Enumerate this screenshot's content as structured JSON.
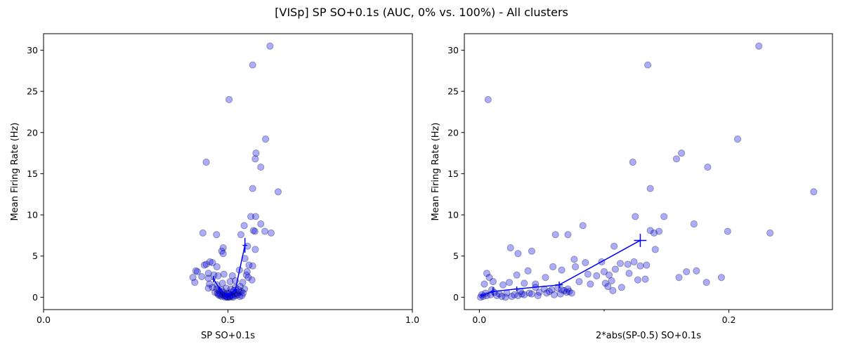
{
  "suptitle": "[VISp] SP SO+0.1s (AUC, 0% vs. 100%) - All clusters",
  "chart_data": [
    {
      "type": "scatter",
      "xlabel": "SP SO+0.1s",
      "ylabel": "Mean Firing Rate (Hz)",
      "xlim": [
        0.0,
        1.0
      ],
      "ylim": [
        -1.5,
        32
      ],
      "xticks": [
        0.0,
        0.5,
        1.0
      ],
      "xtick_labels": [
        "0.0",
        "0.5",
        "1.0"
      ],
      "yticks": [
        0,
        5,
        10,
        15,
        20,
        25,
        30
      ],
      "ytick_labels": [
        "0",
        "5",
        "10",
        "15",
        "20",
        "25",
        "30"
      ],
      "point_color": "#0000ff",
      "line_color": "#0000ff",
      "points": [
        [
          0.614,
          30.5
        ],
        [
          0.567,
          28.2
        ],
        [
          0.503,
          24.0
        ],
        [
          0.602,
          19.2
        ],
        [
          0.576,
          17.5
        ],
        [
          0.574,
          16.8
        ],
        [
          0.589,
          15.8
        ],
        [
          0.441,
          16.4
        ],
        [
          0.636,
          12.8
        ],
        [
          0.567,
          13.2
        ],
        [
          0.562,
          9.8
        ],
        [
          0.575,
          9.8
        ],
        [
          0.589,
          8.9
        ],
        [
          0.544,
          8.7
        ],
        [
          0.569,
          8.1
        ],
        [
          0.573,
          8.0
        ],
        [
          0.6,
          8.0
        ],
        [
          0.617,
          7.8
        ],
        [
          0.432,
          7.8
        ],
        [
          0.469,
          7.6
        ],
        [
          0.535,
          7.6
        ],
        [
          0.487,
          6.0
        ],
        [
          0.553,
          6.2
        ],
        [
          0.483,
          5.6
        ],
        [
          0.487,
          5.3
        ],
        [
          0.574,
          5.8
        ],
        [
          0.546,
          4.7
        ],
        [
          0.451,
          4.3
        ],
        [
          0.441,
          4.0
        ],
        [
          0.436,
          3.9
        ],
        [
          0.458,
          4.2
        ],
        [
          0.557,
          3.9
        ],
        [
          0.567,
          3.8
        ],
        [
          0.47,
          3.7
        ],
        [
          0.413,
          3.2
        ],
        [
          0.417,
          3.1
        ],
        [
          0.531,
          3.3
        ],
        [
          0.447,
          2.9
        ],
        [
          0.552,
          3.1
        ],
        [
          0.55,
          2.7
        ],
        [
          0.462,
          2.7
        ],
        [
          0.473,
          2.6
        ],
        [
          0.405,
          2.4
        ],
        [
          0.429,
          2.5
        ],
        [
          0.447,
          2.3
        ],
        [
          0.489,
          2.8
        ],
        [
          0.512,
          2.6
        ],
        [
          0.555,
          2.4
        ],
        [
          0.565,
          2.1
        ],
        [
          0.41,
          1.8
        ],
        [
          0.45,
          1.6
        ],
        [
          0.47,
          1.5
        ],
        [
          0.485,
          1.7
        ],
        [
          0.506,
          1.9
        ],
        [
          0.52,
          2.0
        ],
        [
          0.54,
          1.8
        ],
        [
          0.447,
          1.1
        ],
        [
          0.458,
          1.2
        ],
        [
          0.47,
          1.0
        ],
        [
          0.482,
          0.9
        ],
        [
          0.495,
          1.1
        ],
        [
          0.508,
          1.0
        ],
        [
          0.52,
          1.2
        ],
        [
          0.533,
          1.3
        ],
        [
          0.545,
          1.0
        ],
        [
          0.465,
          0.6
        ],
        [
          0.472,
          0.5
        ],
        [
          0.478,
          0.4
        ],
        [
          0.485,
          0.3
        ],
        [
          0.49,
          0.2
        ],
        [
          0.495,
          0.1
        ],
        [
          0.5,
          0.0
        ],
        [
          0.503,
          0.1
        ],
        [
          0.507,
          0.2
        ],
        [
          0.512,
          0.3
        ],
        [
          0.518,
          0.4
        ],
        [
          0.524,
          0.5
        ],
        [
          0.53,
          0.6
        ],
        [
          0.536,
          0.7
        ],
        [
          0.541,
          0.5
        ],
        [
          0.488,
          0.6
        ],
        [
          0.498,
          0.5
        ],
        [
          0.508,
          0.6
        ],
        [
          0.516,
          0.8
        ],
        [
          0.528,
          0.9
        ],
        [
          0.476,
          0.8
        ],
        [
          0.493,
          0.3
        ],
        [
          0.502,
          0.4
        ],
        [
          0.511,
          0.1
        ],
        [
          0.521,
          0.2
        ],
        [
          0.526,
          0.3
        ],
        [
          0.498,
          0.0
        ],
        [
          0.505,
          0.0
        ],
        [
          0.514,
          0.0
        ],
        [
          0.492,
          0.0
        ],
        [
          0.483,
          0.1
        ],
        [
          0.478,
          0.2
        ],
        [
          0.474,
          0.3
        ],
        [
          0.532,
          0.1
        ],
        [
          0.538,
          0.2
        ]
      ],
      "line": [
        [
          0.461,
          2.2
        ],
        [
          0.478,
          1.0
        ],
        [
          0.496,
          0.3
        ],
        [
          0.503,
          0.25
        ],
        [
          0.52,
          0.9
        ],
        [
          0.546,
          6.3
        ]
      ],
      "line_errors_y": [
        0.4,
        0.3,
        0.2,
        0.2,
        0.3,
        0.9
      ],
      "line_errors_x": [
        0.005,
        0.005,
        0.004,
        0.004,
        0.005,
        0.006
      ]
    },
    {
      "type": "scatter",
      "xlabel": "2*abs(SP-0.5) SO+0.1s",
      "ylabel": "Mean Firing Rate (Hz)",
      "xlim": [
        -0.012,
        0.283
      ],
      "ylim": [
        -1.5,
        32
      ],
      "xticks": [
        0.0,
        0.2
      ],
      "xtick_labels": [
        "0.0",
        "0.2"
      ],
      "minor_xticks": [
        0.1
      ],
      "yticks": [
        0,
        5,
        10,
        15,
        20,
        25,
        30
      ],
      "ytick_labels": [
        "0",
        "5",
        "10",
        "15",
        "20",
        "25",
        "30"
      ],
      "point_color": "#0000ff",
      "line_color": "#0000ff",
      "points": [
        [
          0.224,
          30.5
        ],
        [
          0.135,
          28.2
        ],
        [
          0.007,
          24.0
        ],
        [
          0.207,
          19.2
        ],
        [
          0.162,
          17.5
        ],
        [
          0.158,
          16.8
        ],
        [
          0.183,
          15.8
        ],
        [
          0.123,
          16.4
        ],
        [
          0.268,
          12.8
        ],
        [
          0.137,
          13.2
        ],
        [
          0.125,
          9.8
        ],
        [
          0.148,
          9.8
        ],
        [
          0.172,
          8.9
        ],
        [
          0.083,
          8.7
        ],
        [
          0.137,
          8.1
        ],
        [
          0.144,
          8.0
        ],
        [
          0.199,
          8.0
        ],
        [
          0.233,
          7.8
        ],
        [
          0.14,
          7.8
        ],
        [
          0.061,
          7.6
        ],
        [
          0.071,
          7.6
        ],
        [
          0.025,
          6.0
        ],
        [
          0.108,
          6.2
        ],
        [
          0.042,
          5.6
        ],
        [
          0.031,
          5.3
        ],
        [
          0.141,
          5.8
        ],
        [
          0.076,
          4.6
        ],
        [
          0.098,
          4.3
        ],
        [
          0.124,
          4.3
        ],
        [
          0.085,
          4.2
        ],
        [
          0.119,
          4.0
        ],
        [
          0.113,
          4.1
        ],
        [
          0.129,
          3.8
        ],
        [
          0.134,
          3.9
        ],
        [
          0.059,
          3.7
        ],
        [
          0.077,
          3.7
        ],
        [
          0.174,
          3.2
        ],
        [
          0.166,
          3.1
        ],
        [
          0.066,
          3.3
        ],
        [
          0.1,
          3.1
        ],
        [
          0.109,
          3.4
        ],
        [
          0.039,
          3.2
        ],
        [
          0.03,
          2.7
        ],
        [
          0.053,
          2.4
        ],
        [
          0.094,
          2.6
        ],
        [
          0.12,
          2.9
        ],
        [
          0.087,
          2.8
        ],
        [
          0.16,
          2.4
        ],
        [
          0.194,
          2.4
        ],
        [
          0.104,
          2.7
        ],
        [
          0.127,
          2.1
        ],
        [
          0.133,
          2.2
        ],
        [
          0.006,
          2.9
        ],
        [
          0.008,
          2.4
        ],
        [
          0.011,
          1.9
        ],
        [
          0.004,
          1.6
        ],
        [
          0.019,
          1.5
        ],
        [
          0.024,
          1.8
        ],
        [
          0.036,
          1.7
        ],
        [
          0.045,
          1.6
        ],
        [
          0.08,
          1.9
        ],
        [
          0.089,
          1.6
        ],
        [
          0.101,
          1.7
        ],
        [
          0.106,
          2.0
        ],
        [
          0.182,
          1.8
        ],
        [
          0.114,
          1.2
        ],
        [
          0.103,
          1.3
        ],
        [
          0.107,
          0.8
        ],
        [
          0.045,
          1.2
        ],
        [
          0.052,
          1.0
        ],
        [
          0.058,
          0.9
        ],
        [
          0.063,
          1.1
        ],
        [
          0.068,
          0.8
        ],
        [
          0.072,
          0.7
        ],
        [
          0.048,
          0.6
        ],
        [
          0.04,
          0.5
        ],
        [
          0.034,
          0.4
        ],
        [
          0.028,
          0.3
        ],
        [
          0.022,
          0.5
        ],
        [
          0.016,
          0.4
        ],
        [
          0.012,
          0.6
        ],
        [
          0.009,
          0.3
        ],
        [
          0.006,
          0.2
        ],
        [
          0.003,
          0.1
        ],
        [
          0.001,
          0.0
        ],
        [
          0.002,
          0.3
        ],
        [
          0.005,
          0.5
        ],
        [
          0.01,
          0.9
        ],
        [
          0.014,
          0.2
        ],
        [
          0.018,
          0.1
        ],
        [
          0.021,
          0.0
        ],
        [
          0.026,
          0.1
        ],
        [
          0.031,
          0.2
        ],
        [
          0.036,
          0.3
        ],
        [
          0.042,
          0.4
        ],
        [
          0.047,
          0.2
        ],
        [
          0.054,
          0.5
        ],
        [
          0.06,
          0.3
        ],
        [
          0.065,
          0.4
        ],
        [
          0.07,
          0.6
        ],
        [
          0.074,
          0.5
        ],
        [
          0.066,
          0.9
        ],
        [
          0.071,
          1.0
        ],
        [
          0.056,
          0.7
        ],
        [
          0.033,
          0.7
        ]
      ],
      "line": [
        [
          0.002,
          0.2
        ],
        [
          0.011,
          0.7
        ],
        [
          0.03,
          1.0
        ],
        [
          0.064,
          1.5
        ],
        [
          0.129,
          6.9
        ]
      ],
      "line_errors_y": [
        0.2,
        0.5,
        0.3,
        0.4,
        0.8
      ],
      "line_errors_x": [
        0.001,
        0.002,
        0.002,
        0.003,
        0.005
      ]
    }
  ]
}
